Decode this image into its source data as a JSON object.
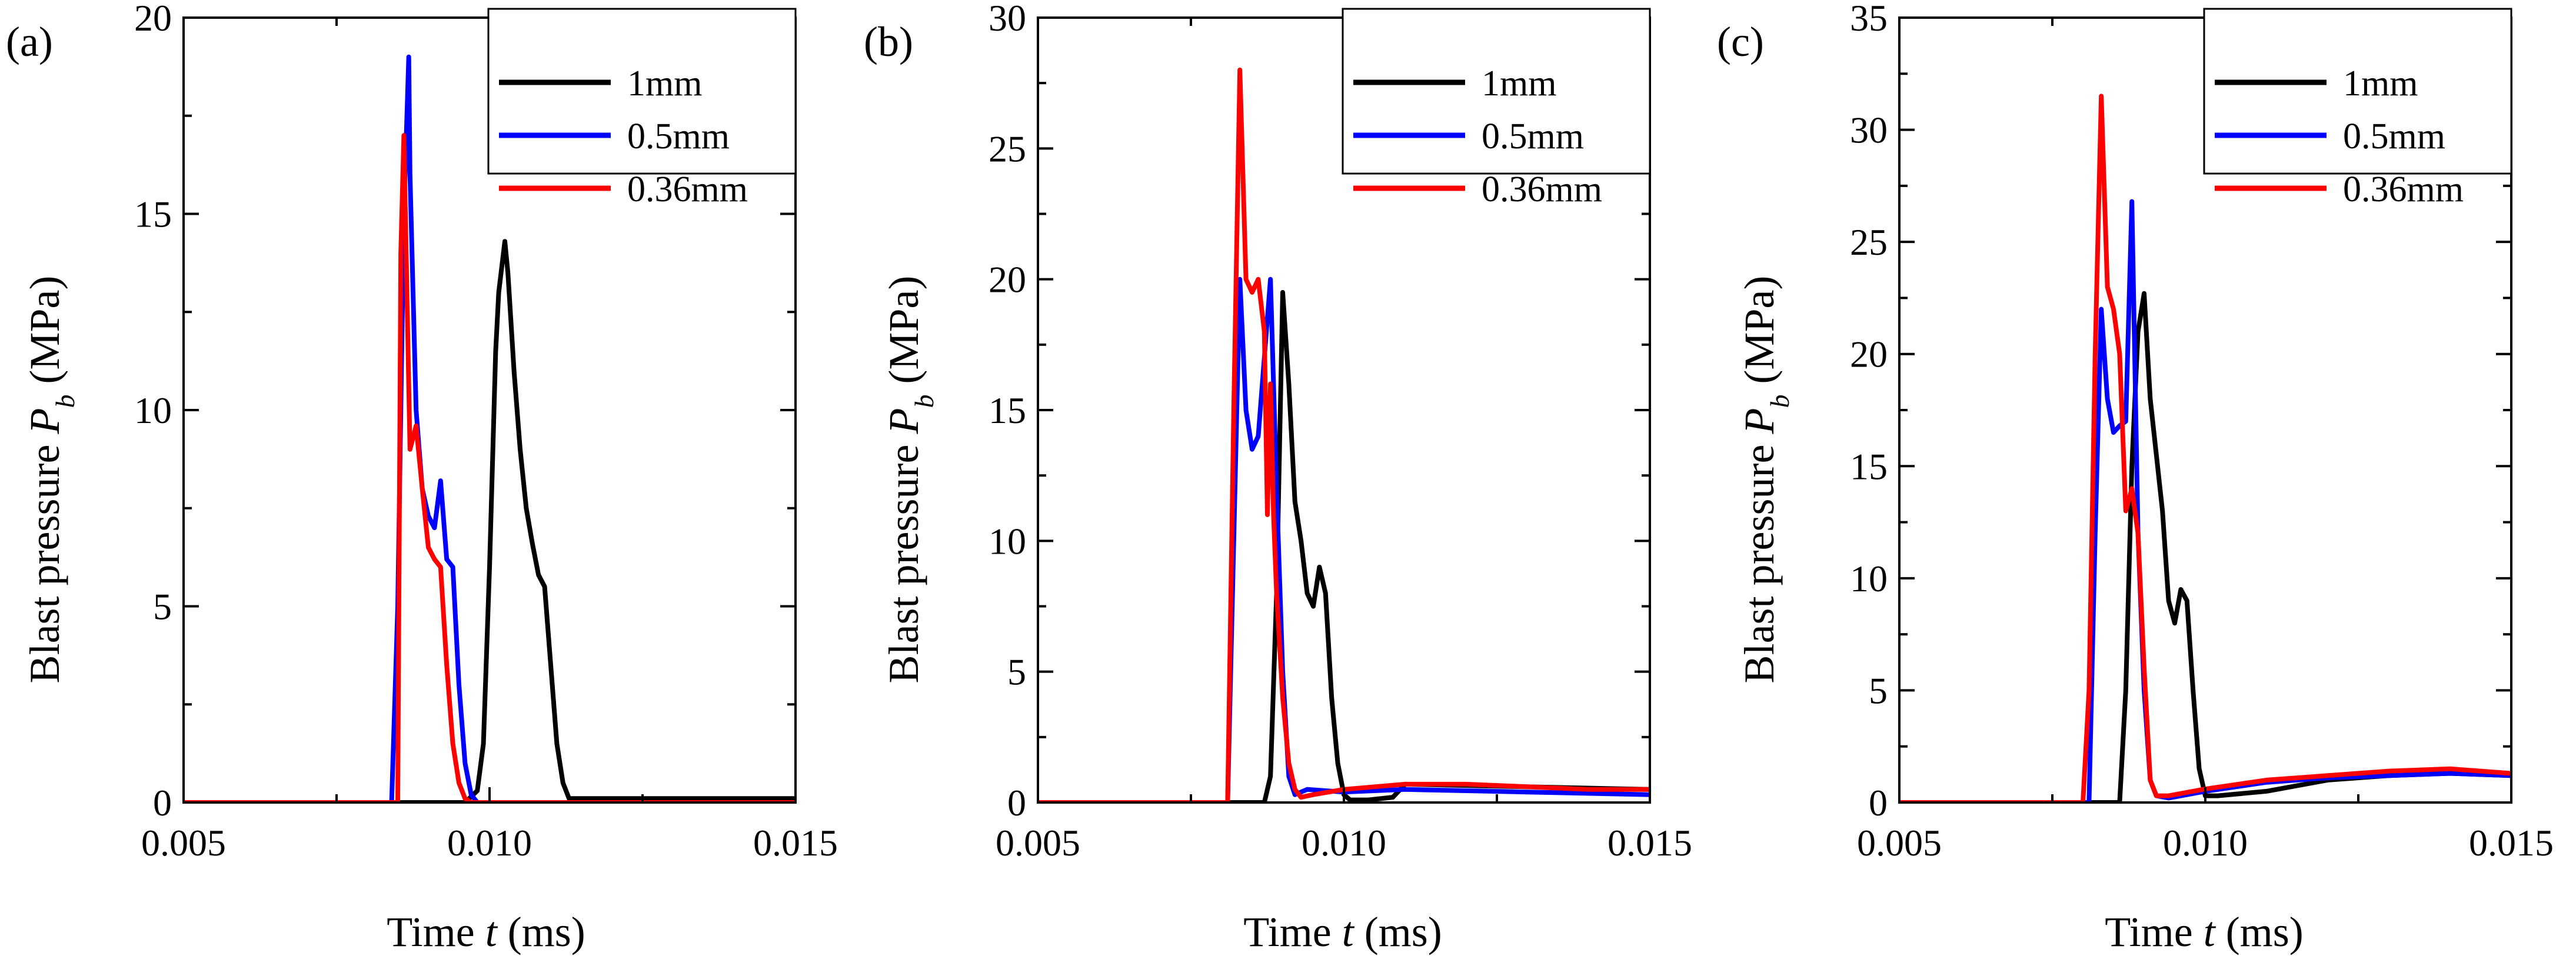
{
  "chart_data": [
    {
      "type": "line",
      "panel_label": "(a)",
      "title": "",
      "xlabel": {
        "prefix": "Time ",
        "var": "t",
        "unit": " (ms)"
      },
      "ylabel": {
        "prefix": "Blast pressure ",
        "var": "P",
        "sub": "b",
        "unit": " (MPa)"
      },
      "xlim": [
        0.005,
        0.015
      ],
      "ylim": [
        0,
        20
      ],
      "xticks": [
        "0.005",
        "0.010",
        "0.015"
      ],
      "yticks": [
        "0",
        "5",
        "10",
        "15",
        "20"
      ],
      "legend_position": "top-right",
      "series": [
        {
          "name": "1mm",
          "color": "#000000",
          "x": [
            0.005,
            0.0096,
            0.0098,
            0.0099,
            0.01,
            0.0101,
            0.01015,
            0.01025,
            0.0103,
            0.0104,
            0.0105,
            0.0106,
            0.0107,
            0.0108,
            0.0109,
            0.011,
            0.0111,
            0.0112,
            0.0113,
            0.015
          ],
          "y": [
            0,
            0,
            0.3,
            1.5,
            6,
            11.5,
            13,
            14.3,
            13.5,
            11,
            9,
            7.5,
            6.6,
            5.8,
            5.5,
            3.5,
            1.5,
            0.5,
            0.1,
            0.1
          ]
        },
        {
          "name": "0.5mm",
          "color": "#0000ff",
          "x": [
            0.005,
            0.0084,
            0.0085,
            0.0086,
            0.00868,
            0.0087,
            0.0088,
            0.0089,
            0.009,
            0.0091,
            0.0092,
            0.0093,
            0.0094,
            0.0095,
            0.0096,
            0.0097,
            0.0098,
            0.015
          ],
          "y": [
            0,
            0,
            5,
            15,
            19,
            16,
            10,
            8,
            7.3,
            7,
            8.2,
            6.2,
            6,
            3,
            1,
            0.2,
            0,
            0
          ]
        },
        {
          "name": "0.36mm",
          "color": "#ff0000",
          "x": [
            0.005,
            0.0085,
            0.00855,
            0.0086,
            0.0087,
            0.0088,
            0.0089,
            0.009,
            0.0091,
            0.0092,
            0.0093,
            0.0094,
            0.0095,
            0.0096,
            0.0097,
            0.015
          ],
          "y": [
            0,
            0,
            14,
            17,
            9,
            9.6,
            8,
            6.5,
            6.2,
            6,
            3.5,
            1.5,
            0.5,
            0.1,
            0,
            0
          ]
        }
      ]
    },
    {
      "type": "line",
      "panel_label": "(b)",
      "title": "",
      "xlabel": {
        "prefix": "Time ",
        "var": "t",
        "unit": " (ms)"
      },
      "ylabel": {
        "prefix": "Blast pressure ",
        "var": "P",
        "sub": "b",
        "unit": " (MPa)"
      },
      "xlim": [
        0.005,
        0.015
      ],
      "ylim": [
        0,
        30
      ],
      "xticks": [
        "0.005",
        "0.010",
        "0.015"
      ],
      "yticks": [
        "0",
        "5",
        "10",
        "15",
        "20",
        "25",
        "30"
      ],
      "legend_position": "top-right",
      "series": [
        {
          "name": "1mm",
          "color": "#000000",
          "x": [
            0.005,
            0.0087,
            0.0088,
            0.0089,
            0.009,
            0.0091,
            0.0092,
            0.0093,
            0.0094,
            0.0095,
            0.0096,
            0.0097,
            0.0098,
            0.0099,
            0.01,
            0.0101,
            0.0104,
            0.0108,
            0.011,
            0.015
          ],
          "y": [
            0,
            0,
            1,
            8,
            19.5,
            16,
            11.5,
            10,
            8,
            7.5,
            9,
            8,
            4,
            1.5,
            0.3,
            0.1,
            0.1,
            0.2,
            0.7,
            0.5
          ]
        },
        {
          "name": "0.5mm",
          "color": "#0000ff",
          "x": [
            0.005,
            0.0081,
            0.0082,
            0.0083,
            0.0084,
            0.0085,
            0.0086,
            0.0087,
            0.0088,
            0.00885,
            0.0089,
            0.009,
            0.0091,
            0.0092,
            0.0094,
            0.01,
            0.011,
            0.013,
            0.015
          ],
          "y": [
            0,
            0,
            10,
            20,
            15,
            13.5,
            14,
            17,
            20,
            16,
            12,
            5,
            1,
            0.3,
            0.5,
            0.4,
            0.5,
            0.4,
            0.3
          ]
        },
        {
          "name": "0.36mm",
          "color": "#ff0000",
          "x": [
            0.005,
            0.0081,
            0.0082,
            0.0083,
            0.0084,
            0.0085,
            0.0086,
            0.0087,
            0.00875,
            0.0088,
            0.00885,
            0.0089,
            0.009,
            0.0091,
            0.0092,
            0.0093,
            0.0095,
            0.01,
            0.0105,
            0.011,
            0.012,
            0.013,
            0.014,
            0.015
          ],
          "y": [
            0,
            0,
            15,
            28,
            20,
            19.5,
            20,
            18,
            11,
            16,
            11,
            8,
            4,
            1.5,
            0.5,
            0.2,
            0.3,
            0.5,
            0.6,
            0.7,
            0.7,
            0.6,
            0.5,
            0.5
          ]
        }
      ]
    },
    {
      "type": "line",
      "panel_label": "(c)",
      "title": "",
      "xlabel": {
        "prefix": "Time ",
        "var": "t",
        "unit": " (ms)"
      },
      "ylabel": {
        "prefix": "Blast pressure ",
        "var": "P",
        "sub": "b",
        "unit": " (MPa)"
      },
      "xlim": [
        0.005,
        0.015
      ],
      "ylim": [
        0,
        35
      ],
      "xticks": [
        "0.005",
        "0.010",
        "0.015"
      ],
      "yticks": [
        "0",
        "5",
        "10",
        "15",
        "20",
        "25",
        "30",
        "35"
      ],
      "legend_position": "top-right",
      "series": [
        {
          "name": "1mm",
          "color": "#000000",
          "x": [
            0.005,
            0.0086,
            0.0087,
            0.0088,
            0.0089,
            0.009,
            0.0091,
            0.0092,
            0.0093,
            0.0094,
            0.0095,
            0.0096,
            0.0097,
            0.0098,
            0.0099,
            0.01,
            0.0102,
            0.011,
            0.012,
            0.013,
            0.014,
            0.015
          ],
          "y": [
            0,
            0,
            5,
            15,
            21,
            22.7,
            18,
            15.5,
            13,
            9,
            8,
            9.5,
            9,
            5,
            1.5,
            0.3,
            0.3,
            0.5,
            1.0,
            1.2,
            1.3,
            1.2
          ]
        },
        {
          "name": "0.5mm",
          "color": "#0000ff",
          "x": [
            0.005,
            0.0081,
            0.0082,
            0.0083,
            0.0084,
            0.0085,
            0.0086,
            0.0087,
            0.0088,
            0.0089,
            0.009,
            0.0091,
            0.0092,
            0.0094,
            0.01,
            0.011,
            0.012,
            0.013,
            0.014,
            0.015
          ],
          "y": [
            0,
            0,
            12,
            22,
            18,
            16.5,
            16.8,
            17,
            26.8,
            12,
            5,
            1,
            0.3,
            0.2,
            0.5,
            0.9,
            1.1,
            1.2,
            1.3,
            1.2
          ]
        },
        {
          "name": "0.36mm",
          "color": "#ff0000",
          "x": [
            0.005,
            0.008,
            0.0081,
            0.0082,
            0.0083,
            0.0084,
            0.0085,
            0.0086,
            0.0087,
            0.0088,
            0.0089,
            0.009,
            0.0091,
            0.0092,
            0.0094,
            0.01,
            0.011,
            0.012,
            0.013,
            0.014,
            0.015
          ],
          "y": [
            0,
            0,
            5,
            20,
            31.5,
            23,
            22,
            20,
            13,
            14,
            12,
            6,
            1,
            0.3,
            0.3,
            0.6,
            1.0,
            1.2,
            1.4,
            1.5,
            1.3
          ]
        }
      ]
    }
  ]
}
